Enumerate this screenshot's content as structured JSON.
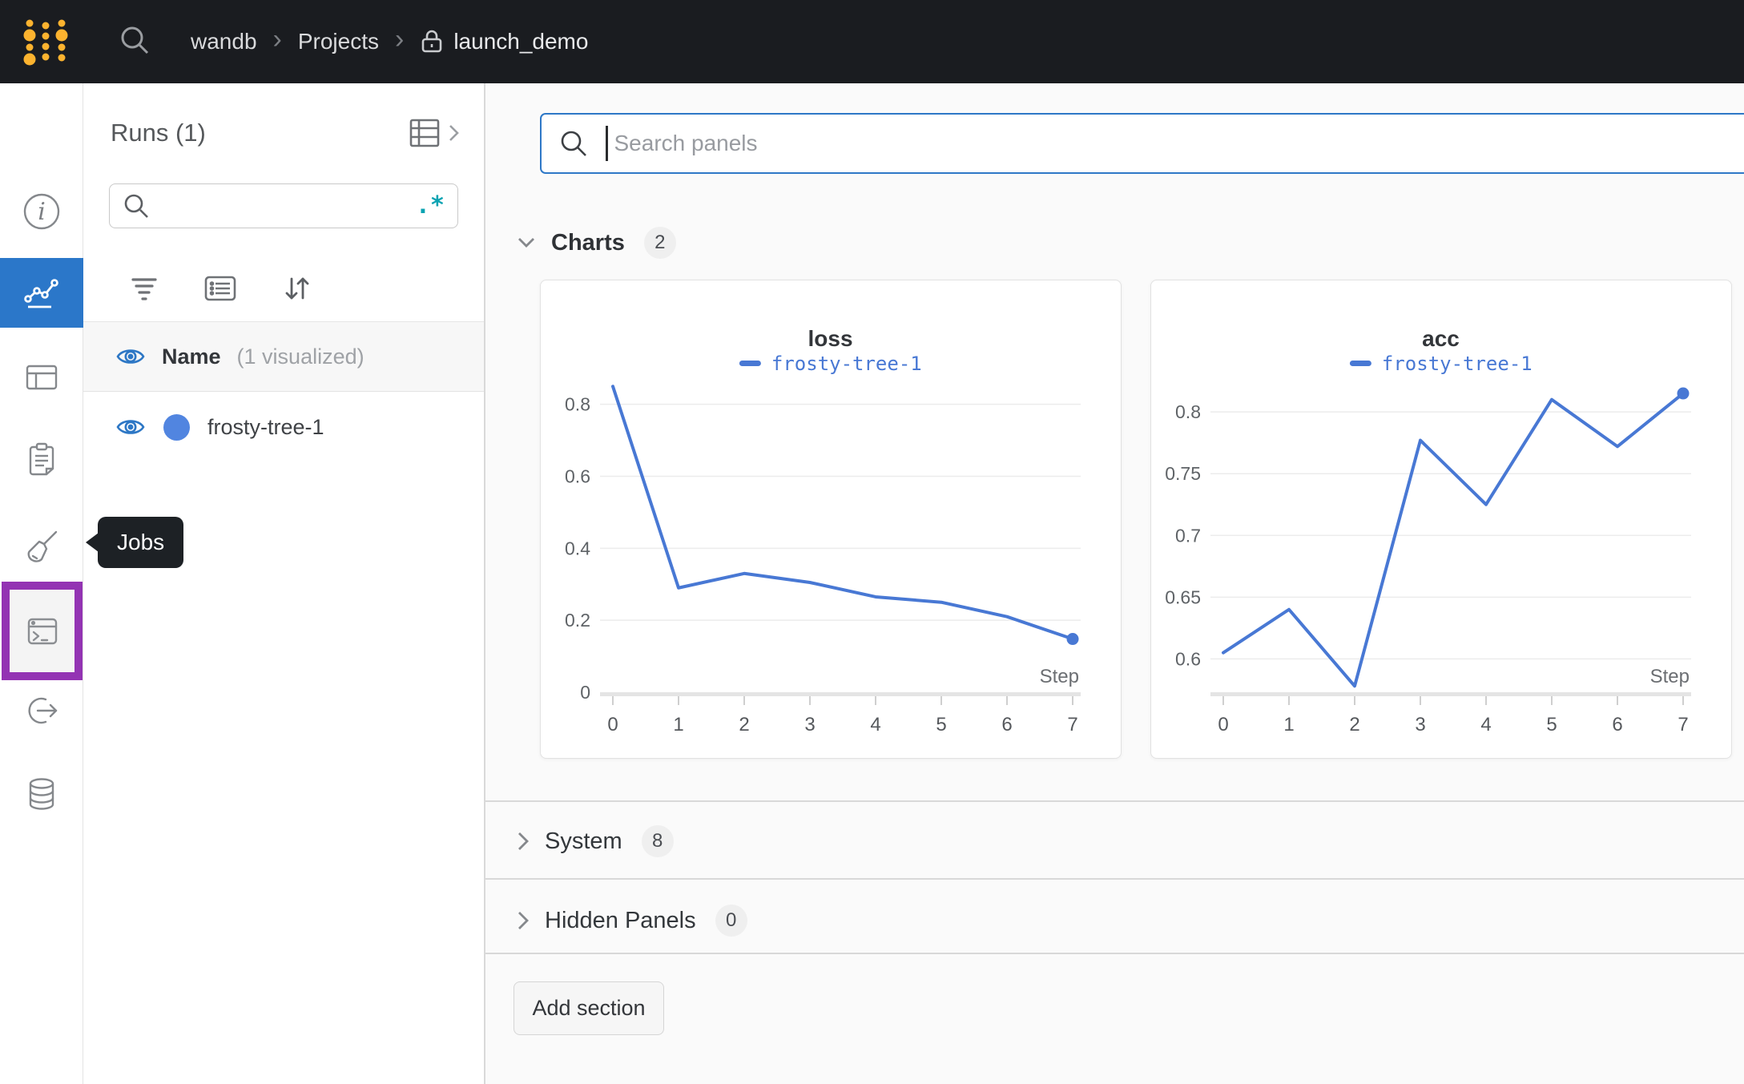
{
  "topbar": {
    "breadcrumb": {
      "team": "wandb",
      "section": "Projects",
      "project": "launch_demo"
    },
    "separator": "›"
  },
  "sidebar": {
    "tooltip_label": "Jobs"
  },
  "runs_panel": {
    "title": "Runs (1)",
    "search_value": "",
    "regex_label": ".*",
    "name_label": "Name",
    "visualized_label": "(1 visualized)",
    "run_name": "frosty-tree-1"
  },
  "main": {
    "search_placeholder": "Search panels",
    "sections": [
      {
        "label": "Charts",
        "count": "2"
      },
      {
        "label": "System",
        "count": "8"
      },
      {
        "label": "Hidden Panels",
        "count": "0"
      }
    ],
    "add_section_label": "Add section"
  },
  "chart_data": [
    {
      "type": "line",
      "title": "loss",
      "xlabel": "Step",
      "x": [
        0,
        1,
        2,
        3,
        4,
        5,
        6,
        7
      ],
      "series": [
        {
          "name": "frosty-tree-1",
          "values": [
            0.85,
            0.29,
            0.33,
            0.305,
            0.265,
            0.25,
            0.21,
            0.148
          ]
        }
      ],
      "yticks": [
        0,
        0.2,
        0.4,
        0.6,
        0.8
      ],
      "ylim": [
        0,
        0.875
      ],
      "xticks": [
        0,
        1,
        2,
        3,
        4,
        5,
        6,
        7
      ],
      "grid": true,
      "legend_position": "top",
      "line_color": "#4878d4"
    },
    {
      "type": "line",
      "title": "acc",
      "xlabel": "Step",
      "x": [
        0,
        1,
        2,
        3,
        4,
        5,
        6,
        7
      ],
      "series": [
        {
          "name": "frosty-tree-1",
          "values": [
            0.605,
            0.64,
            0.578,
            0.777,
            0.725,
            0.81,
            0.772,
            0.815
          ]
        }
      ],
      "yticks": [
        0.6,
        0.65,
        0.7,
        0.75,
        0.8
      ],
      "ylim": [
        0.573,
        0.828
      ],
      "xticks": [
        0,
        1,
        2,
        3,
        4,
        5,
        6,
        7
      ],
      "grid": true,
      "legend_position": "top",
      "line_color": "#4878d4"
    }
  ],
  "colors": {
    "topbar_bg": "#1a1c20",
    "accent_blue": "#2b77c9",
    "run_color": "#5185e0",
    "line_blue": "#4878d4",
    "purple_highlight": "#9333b3",
    "regex_teal": "#0ba3b2",
    "logo_yellow": "#fcb32f"
  }
}
